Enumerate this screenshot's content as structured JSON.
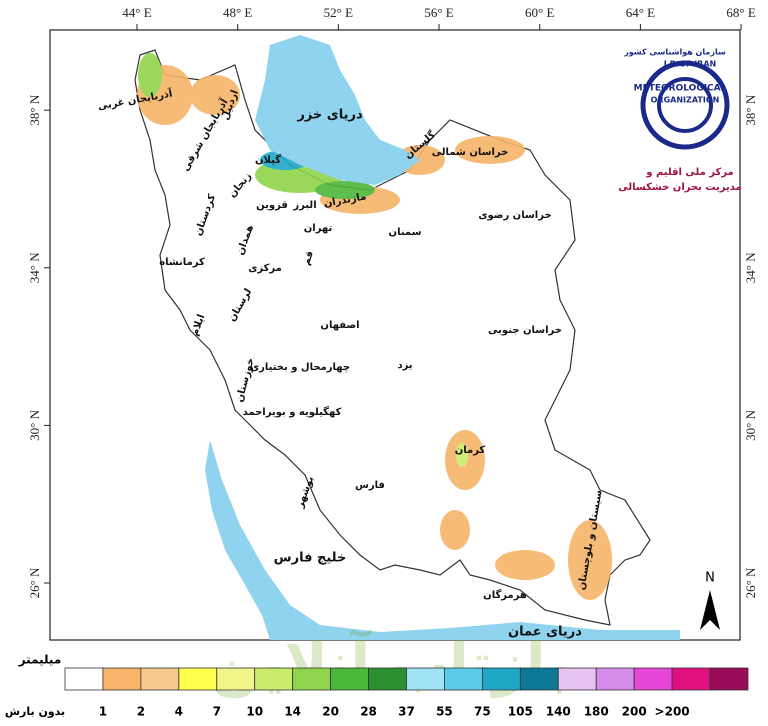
{
  "map": {
    "lon_ticks": [
      {
        "value": 44,
        "label": "44° E"
      },
      {
        "value": 48,
        "label": "48° E"
      },
      {
        "value": 52,
        "label": "52° E"
      },
      {
        "value": 56,
        "label": "56° E"
      },
      {
        "value": 60,
        "label": "60° E"
      },
      {
        "value": 64,
        "label": "64° E"
      },
      {
        "value": 68,
        "label": "68° E"
      }
    ],
    "lat_ticks": [
      {
        "value": 26,
        "label": "26° N"
      },
      {
        "value": 30,
        "label": "30° N"
      },
      {
        "value": 34,
        "label": "34° N"
      },
      {
        "value": 38,
        "label": "38° N"
      }
    ],
    "provinces": [
      "آذربایجان غربی",
      "اردبیل",
      "آذربایجان شرقی",
      "گیلان",
      "زنجان",
      "کردستان",
      "قزوین",
      "البرز",
      "مازندران",
      "گلستان",
      "خراسان شمالی",
      "خراسان رضوی",
      "سمنان",
      "تهران",
      "همدان",
      "کرمانشاه",
      "قم",
      "مرکزی",
      "لرستان",
      "ایلام",
      "اصفهان",
      "خراسان جنوبی",
      "یزد",
      "چهارمحال و بختیاری",
      "خوزستان",
      "کهگیلویه و بویراحمد",
      "کرمان",
      "فارس",
      "بوشهر",
      "هرمزگان",
      "سیستان و بلوچستان"
    ],
    "seas": [
      "دریای خزر",
      "خلیج فارس",
      "دریای عمان"
    ],
    "north": "N",
    "logo": {
      "org_fa": "سازمان هواشناسی کشور",
      "line1": "I.R.OF IRAN",
      "line2": "METEOROLOGICAL",
      "line3": "ORGANIZATION",
      "center1": "مرکز ملی اقلیم و",
      "center2": "مدیریت بحران خشکسالی"
    },
    "watermark": "بازتاب آنلاین"
  },
  "legend": {
    "title": "میلیمتر",
    "no_rain": "بدون بارش",
    "colors": [
      "#ffffff",
      "#f7b46a",
      "#f4c98a",
      "#ffff4d",
      "#f2f58a",
      "#c9ec6a",
      "#8fd44a",
      "#4cb83a",
      "#2a9030",
      "#9fe3f5",
      "#5ccbea",
      "#1fa7c8",
      "#0b7896",
      "#e6c3f2",
      "#d58be8",
      "#e647d8",
      "#e0107f",
      "#9c0a5a"
    ],
    "labels": [
      "1",
      "2",
      "4",
      "7",
      "10",
      "14",
      "20",
      "28",
      "37",
      "55",
      "75",
      "105",
      "140",
      "180",
      "200",
      ">200"
    ]
  }
}
